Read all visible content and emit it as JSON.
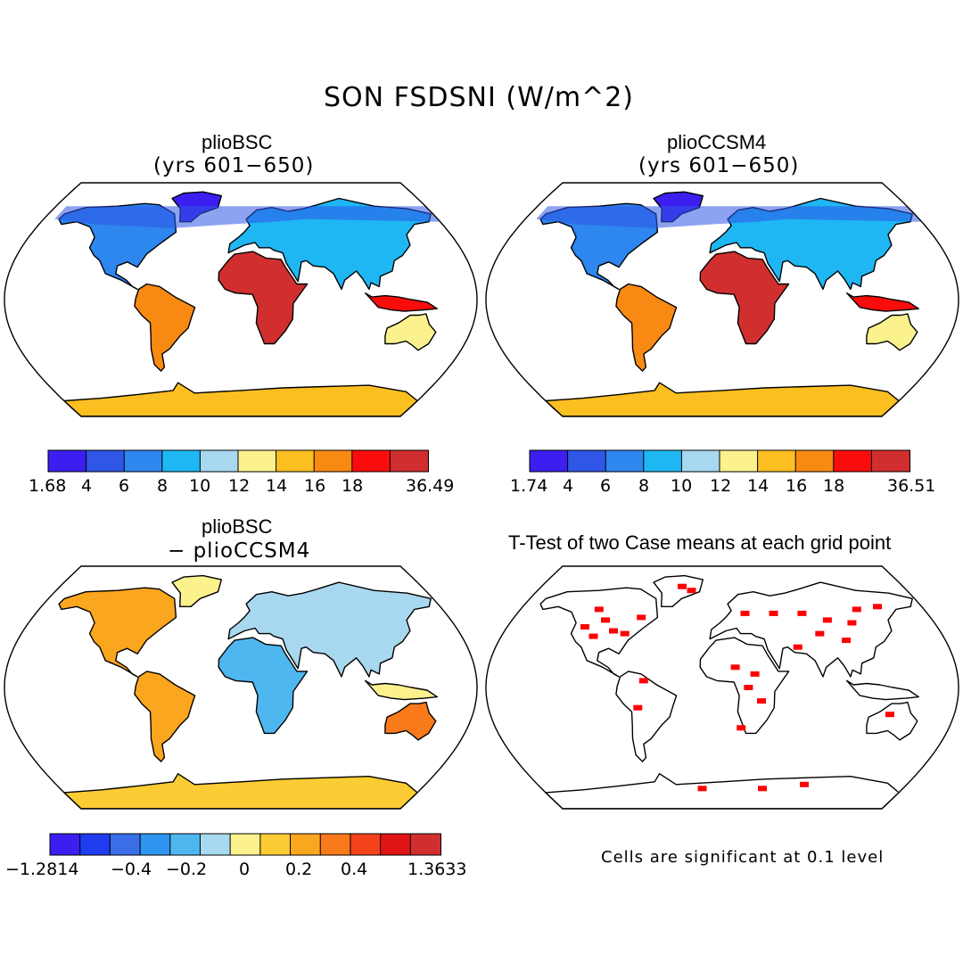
{
  "title": "SON FSDSNI (W/m^2)",
  "panels": [
    {
      "id": "a",
      "title": "plioBSC",
      "subtitle": "(yrs 601−650)",
      "colorbar": {
        "colors": [
          "#3c1ff0",
          "#2f56e6",
          "#2e86ef",
          "#1eb7f3",
          "#a8d8ef",
          "#fbf28e",
          "#fbbf21",
          "#f88913",
          "#fb0c0c",
          "#d12f2f"
        ],
        "labels": [
          "1.68",
          "4",
          "6",
          "8",
          "10",
          "12",
          "14",
          "16",
          "18",
          "36.49"
        ]
      }
    },
    {
      "id": "b",
      "title": "plioCCSM4",
      "subtitle": "(yrs 601−650)",
      "colorbar": {
        "colors": [
          "#3c1ff0",
          "#2f56e6",
          "#2e86ef",
          "#1eb7f3",
          "#a8d8ef",
          "#fbf28e",
          "#fbbf21",
          "#f88913",
          "#fb0c0c",
          "#d12f2f"
        ],
        "labels": [
          "1.74",
          "4",
          "6",
          "8",
          "10",
          "12",
          "14",
          "16",
          "18",
          "36.51"
        ]
      }
    },
    {
      "id": "c",
      "title": "plioBSC",
      "subtitle": "− plioCCSM4",
      "colorbar": {
        "colors": [
          "#3c1ff0",
          "#1f3cf0",
          "#3a6fe8",
          "#2e96f0",
          "#4fb7f0",
          "#a8d8ef",
          "#fbf28e",
          "#fbcc33",
          "#fba61f",
          "#f87a1a",
          "#f4421a",
          "#e01414",
          "#d12f2f"
        ],
        "labels": [
          "−1.2814",
          "−0.4",
          "−0.2",
          "0",
          "0.2",
          "0.4",
          "1.3633"
        ]
      }
    },
    {
      "id": "d",
      "title": "T-Test of two Case means at each grid point",
      "note": "Cells are significant at 0.1 level"
    }
  ]
}
